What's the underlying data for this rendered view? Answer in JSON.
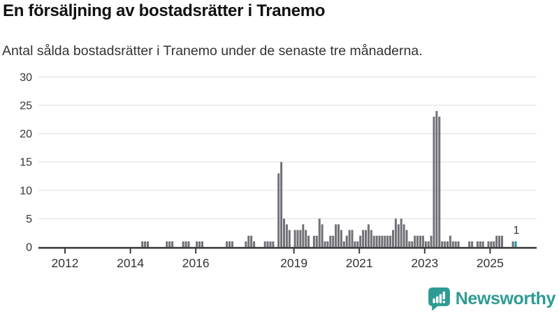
{
  "header": {
    "title": "En försäljning av bostadsrätter i Tranemo",
    "subtitle": "Antal sålda bostadsrätter i Tranemo under de senaste tre månaderna."
  },
  "chart_data": {
    "type": "bar",
    "title": "En försäljning av bostadsrätter i Tranemo",
    "xlabel": "",
    "ylabel": "",
    "x_unit": "month",
    "start_month": "2011-01",
    "values": [
      0,
      0,
      0,
      0,
      0,
      0,
      0,
      0,
      0,
      0,
      0,
      0,
      0,
      0,
      0,
      0,
      0,
      0,
      0,
      0,
      0,
      0,
      0,
      0,
      0,
      0,
      0,
      0,
      0,
      0,
      0,
      0,
      0,
      0,
      0,
      0,
      0,
      0,
      0,
      0,
      1,
      1,
      1,
      0,
      0,
      0,
      0,
      0,
      0,
      1,
      1,
      1,
      0,
      0,
      0,
      1,
      1,
      1,
      0,
      0,
      1,
      1,
      1,
      0,
      0,
      0,
      0,
      0,
      0,
      0,
      0,
      1,
      1,
      1,
      0,
      0,
      0,
      0,
      1,
      2,
      2,
      1,
      0,
      0,
      0,
      1,
      1,
      1,
      1,
      0,
      13,
      15,
      5,
      4,
      3,
      0,
      3,
      3,
      3,
      4,
      3,
      2,
      0,
      2,
      2,
      5,
      4,
      1,
      1,
      2,
      2,
      4,
      4,
      3,
      1,
      2,
      3,
      3,
      1,
      1,
      2,
      3,
      3,
      4,
      3,
      2,
      2,
      2,
      2,
      2,
      2,
      2,
      3,
      5,
      4,
      5,
      4,
      3,
      1,
      1,
      2,
      2,
      2,
      2,
      1,
      1,
      2,
      23,
      24,
      23,
      1,
      1,
      1,
      2,
      1,
      1,
      1,
      0,
      0,
      0,
      1,
      1,
      0,
      1,
      1,
      1,
      0,
      1,
      1,
      1,
      2,
      2,
      2,
      0,
      0,
      0,
      1,
      1
    ],
    "ylim": [
      0,
      30
    ],
    "y_ticks": [
      0,
      5,
      10,
      15,
      20,
      25,
      30
    ],
    "x_tick_years": [
      2012,
      2014,
      2016,
      2019,
      2021,
      2023,
      2025
    ],
    "grid": "horizontal",
    "legend": "none",
    "bar_color": "#717077",
    "highlight_color": "#169b9e",
    "highlight_last": true,
    "annotation": {
      "text": "1",
      "target": "last-bar"
    },
    "axis_color": "#3d3d3d",
    "grid_color": "#e4e4e4",
    "tick_label_color": "#333333"
  },
  "footer": {
    "brand": "Newsworthy",
    "brand_color": "#2d9b93"
  }
}
